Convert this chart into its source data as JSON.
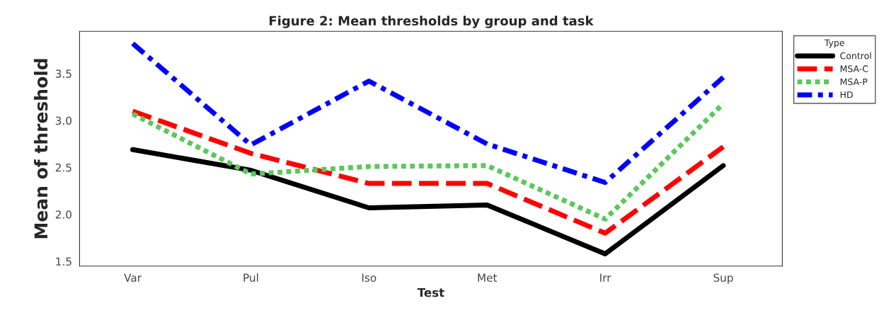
{
  "chart_data": {
    "type": "line",
    "title": "Figure 2: Mean thresholds by group and task",
    "xlabel": "Test",
    "ylabel": "Mean of threshold",
    "legend_title": "Type",
    "categories": [
      "Var",
      "Pul",
      "Iso",
      "Met",
      "Irr",
      "Sup"
    ],
    "series": [
      {
        "name": "Control",
        "color": "#000000",
        "line_style": "solid",
        "values": [
          2.69,
          2.47,
          2.07,
          2.1,
          1.58,
          2.52
        ]
      },
      {
        "name": "MSA-C",
        "color": "#ff0000",
        "line_style": "dashed",
        "values": [
          3.1,
          2.65,
          2.33,
          2.33,
          1.8,
          2.72
        ]
      },
      {
        "name": "MSA-P",
        "color": "#5cc75c",
        "line_style": "dotted",
        "values": [
          3.07,
          2.43,
          2.51,
          2.52,
          1.95,
          3.18
        ]
      },
      {
        "name": "HD",
        "color": "#0000ff",
        "line_style": "dashdot",
        "values": [
          3.82,
          2.74,
          3.42,
          2.75,
          2.34,
          3.46
        ]
      }
    ],
    "ylim": [
      1.45,
      3.95
    ],
    "yticks": [
      1.5,
      {
        "value": 2,
        "label": "2.0"
      },
      2.5,
      {
        "value": 3,
        "label": "3.0"
      },
      3.5
    ],
    "grid": false,
    "legend": "right"
  }
}
